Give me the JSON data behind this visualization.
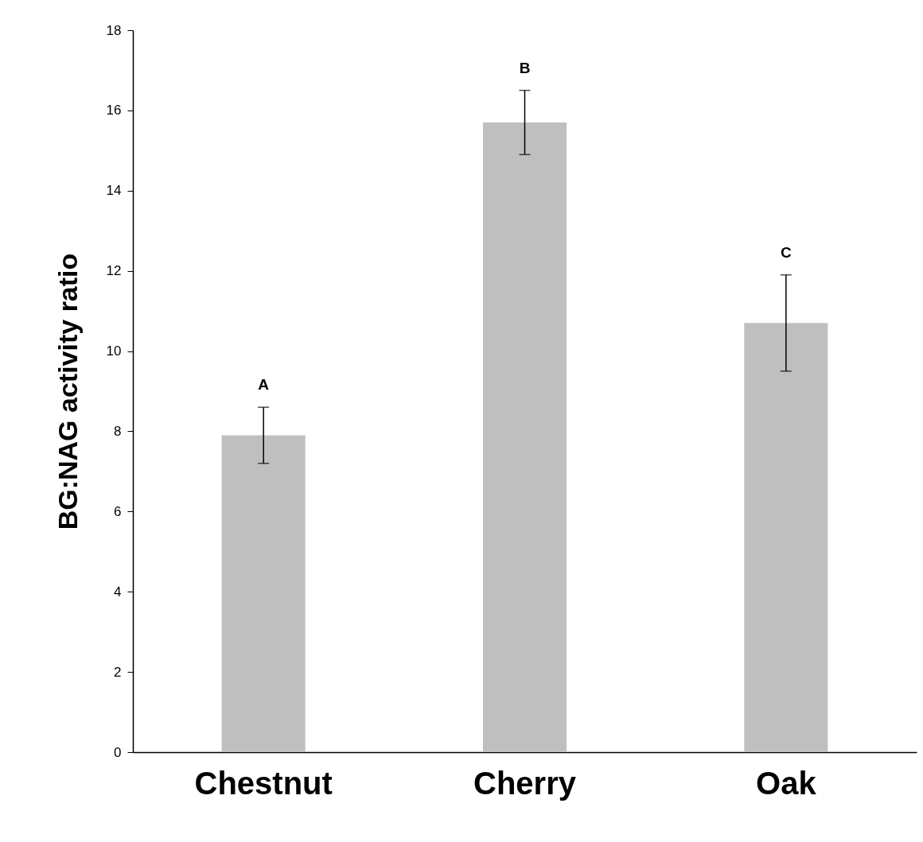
{
  "chart_data": {
    "type": "bar",
    "ylabel": "BG:NAG activity ratio",
    "categories": [
      "Chestnut",
      "Cherry",
      "Oak"
    ],
    "values": [
      7.9,
      15.7,
      10.7
    ],
    "errors": [
      0.7,
      0.8,
      1.2
    ],
    "color": "#bfbfbf",
    "ylim": [
      0,
      18
    ],
    "yticks": [
      0,
      2,
      4,
      6,
      8,
      10,
      12,
      14,
      16,
      18
    ],
    "grid": false,
    "annotations": [
      "A",
      "B",
      "C"
    ]
  }
}
